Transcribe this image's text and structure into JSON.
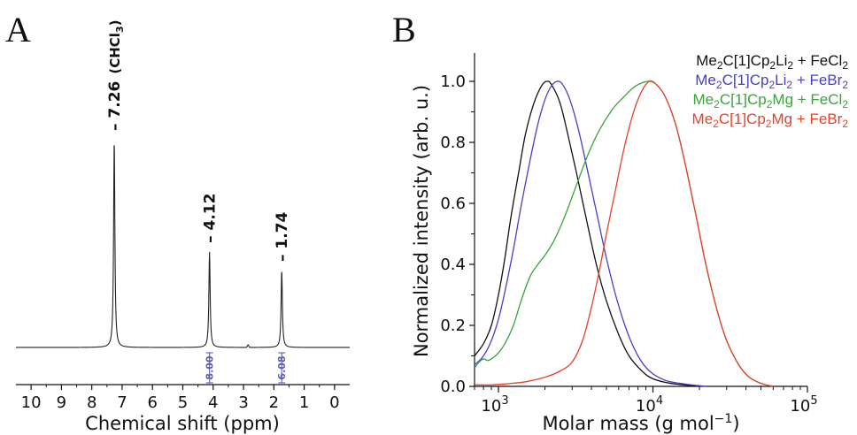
{
  "colors": {
    "axis": "#111111",
    "nmr_spectrum": "#222222",
    "integration": "#5b5bb0",
    "series_black": "#111111",
    "series_blue": "#4a3fc4",
    "series_green": "#3aa33a",
    "series_red": "#e8402a"
  },
  "chart_data": [
    {
      "panel": "A",
      "type": "line",
      "xlabel": "Chemical shift (ppm)",
      "ylabel": "",
      "xlim": [
        10.5,
        -0.5
      ],
      "x_reversed": true,
      "xticks": [
        "10",
        "9",
        "8",
        "7",
        "6",
        "5",
        "4",
        "3",
        "2",
        "1",
        "0"
      ],
      "tick_values": [
        10,
        9,
        8,
        7,
        6,
        5,
        4,
        3,
        2,
        1,
        0
      ],
      "grid": false,
      "peaks": [
        {
          "shift": 7.26,
          "relative_height": 1.0,
          "label": "7.26",
          "annotation": "(CHCl",
          "annotation_sub": "3",
          "annotation_end": ")"
        },
        {
          "shift": 4.12,
          "relative_height": 0.46,
          "label": "4.12"
        },
        {
          "shift": 1.74,
          "relative_height": 0.37,
          "label": "1.74"
        }
      ],
      "integrals": [
        {
          "shift": 4.12,
          "value": "8.00"
        },
        {
          "shift": 1.74,
          "value": "6.08"
        }
      ]
    },
    {
      "panel": "B",
      "type": "line",
      "xlabel_main": "Molar mass (g mol",
      "xlabel_sup": "−1",
      "xlabel_end": ")",
      "ylabel": "Normalized intensity (arb. u.)",
      "x_scale": "log",
      "xlim": [
        700,
        100000
      ],
      "ylim": [
        0,
        1.08
      ],
      "xticks": [
        {
          "value": 1000,
          "base": "10",
          "exp": "3"
        },
        {
          "value": 10000,
          "base": "10",
          "exp": "4"
        },
        {
          "value": 100000,
          "base": "10",
          "exp": "5"
        }
      ],
      "yticks": [
        "0.0",
        "0.2",
        "0.4",
        "0.6",
        "0.8",
        "1.0"
      ],
      "ytick_values": [
        0,
        0.2,
        0.4,
        0.6,
        0.8,
        1.0
      ],
      "grid": false,
      "legend_position": "top-right",
      "series": [
        {
          "name": "Me2C[1]Cp2Li2 + FeCl2",
          "color_key": "series_black",
          "legend_parts": [
            [
              "Me",
              ""
            ],
            [
              "2",
              "sub"
            ],
            [
              "C[1]Cp",
              ""
            ],
            [
              "2",
              "sub"
            ],
            [
              "Li",
              ""
            ],
            [
              "2",
              "sub"
            ],
            [
              " + FeCl",
              ""
            ],
            [
              "2",
              "sub"
            ]
          ],
          "points": [
            [
              700,
              0.1
            ],
            [
              800,
              0.14
            ],
            [
              900,
              0.2
            ],
            [
              1000,
              0.3
            ],
            [
              1100,
              0.42
            ],
            [
              1200,
              0.55
            ],
            [
              1350,
              0.7
            ],
            [
              1500,
              0.83
            ],
            [
              1700,
              0.93
            ],
            [
              1900,
              0.985
            ],
            [
              2050,
              1.0
            ],
            [
              2200,
              0.99
            ],
            [
              2500,
              0.93
            ],
            [
              2800,
              0.83
            ],
            [
              3200,
              0.7
            ],
            [
              3700,
              0.55
            ],
            [
              4300,
              0.4
            ],
            [
              5000,
              0.28
            ],
            [
              6000,
              0.17
            ],
            [
              7000,
              0.1
            ],
            [
              8500,
              0.05
            ],
            [
              10000,
              0.025
            ],
            [
              13000,
              0.01
            ],
            [
              20000,
              0.0
            ]
          ]
        },
        {
          "name": "Me2C[1]Cp2Li2 + FeBr2",
          "color_key": "series_blue",
          "legend_parts": [
            [
              "Me",
              ""
            ],
            [
              "2",
              "sub"
            ],
            [
              "C[1]Cp",
              ""
            ],
            [
              "2",
              "sub"
            ],
            [
              "Li",
              ""
            ],
            [
              "2",
              "sub"
            ],
            [
              " + FeBr",
              ""
            ],
            [
              "2",
              "sub"
            ]
          ],
          "points": [
            [
              700,
              0.07
            ],
            [
              800,
              0.1
            ],
            [
              900,
              0.15
            ],
            [
              1000,
              0.22
            ],
            [
              1100,
              0.31
            ],
            [
              1250,
              0.45
            ],
            [
              1400,
              0.59
            ],
            [
              1600,
              0.74
            ],
            [
              1800,
              0.86
            ],
            [
              2000,
              0.94
            ],
            [
              2200,
              0.985
            ],
            [
              2400,
              1.0
            ],
            [
              2600,
              0.99
            ],
            [
              2900,
              0.94
            ],
            [
              3300,
              0.84
            ],
            [
              3800,
              0.7
            ],
            [
              4400,
              0.55
            ],
            [
              5000,
              0.42
            ],
            [
              5800,
              0.29
            ],
            [
              6800,
              0.18
            ],
            [
              8000,
              0.1
            ],
            [
              9500,
              0.05
            ],
            [
              12000,
              0.02
            ],
            [
              16000,
              0.008
            ],
            [
              22000,
              0.0
            ]
          ]
        },
        {
          "name": "Me2C[1]Cp2Mg + FeCl2",
          "color_key": "series_green",
          "legend_parts": [
            [
              "Me",
              ""
            ],
            [
              "2",
              "sub"
            ],
            [
              "C[1]Cp",
              ""
            ],
            [
              "2",
              "sub"
            ],
            [
              "Mg + FeCl",
              ""
            ],
            [
              "2",
              "sub"
            ]
          ],
          "points": [
            [
              700,
              0.06
            ],
            [
              750,
              0.08
            ],
            [
              800,
              0.09
            ],
            [
              850,
              0.085
            ],
            [
              900,
              0.09
            ],
            [
              1000,
              0.11
            ],
            [
              1100,
              0.14
            ],
            [
              1250,
              0.2
            ],
            [
              1400,
              0.28
            ],
            [
              1600,
              0.36
            ],
            [
              1800,
              0.4
            ],
            [
              2000,
              0.43
            ],
            [
              2300,
              0.48
            ],
            [
              2700,
              0.56
            ],
            [
              3200,
              0.66
            ],
            [
              3800,
              0.76
            ],
            [
              4500,
              0.84
            ],
            [
              5500,
              0.91
            ],
            [
              6500,
              0.95
            ],
            [
              7500,
              0.98
            ],
            [
              8500,
              0.995
            ],
            [
              9500,
              1.0
            ],
            [
              10500,
              0.99
            ],
            [
              12000,
              0.95
            ],
            [
              14000,
              0.86
            ],
            [
              16000,
              0.74
            ],
            [
              19000,
              0.56
            ],
            [
              22000,
              0.4
            ],
            [
              26000,
              0.25
            ],
            [
              30000,
              0.15
            ],
            [
              36000,
              0.07
            ],
            [
              42000,
              0.03
            ],
            [
              50000,
              0.01
            ],
            [
              60000,
              0.0
            ]
          ]
        },
        {
          "name": "Me2C[1]Cp2Mg + FeBr2",
          "color_key": "series_red",
          "legend_parts": [
            [
              "Me",
              ""
            ],
            [
              "2",
              "sub"
            ],
            [
              "C[1]Cp",
              ""
            ],
            [
              "2",
              "sub"
            ],
            [
              "Mg + FeBr",
              ""
            ],
            [
              "2",
              "sub"
            ]
          ],
          "points": [
            [
              700,
              0.005
            ],
            [
              900,
              0.005
            ],
            [
              1100,
              0.008
            ],
            [
              1500,
              0.015
            ],
            [
              2000,
              0.03
            ],
            [
              2500,
              0.05
            ],
            [
              3000,
              0.08
            ],
            [
              3500,
              0.15
            ],
            [
              4000,
              0.26
            ],
            [
              4500,
              0.38
            ],
            [
              5000,
              0.5
            ],
            [
              5700,
              0.64
            ],
            [
              6500,
              0.78
            ],
            [
              7500,
              0.9
            ],
            [
              8500,
              0.97
            ],
            [
              9500,
              1.0
            ],
            [
              10500,
              0.99
            ],
            [
              12000,
              0.95
            ],
            [
              14000,
              0.86
            ],
            [
              16000,
              0.74
            ],
            [
              19000,
              0.56
            ],
            [
              22000,
              0.4
            ],
            [
              26000,
              0.25
            ],
            [
              30000,
              0.15
            ],
            [
              36000,
              0.07
            ],
            [
              42000,
              0.03
            ],
            [
              50000,
              0.01
            ],
            [
              60000,
              0.0
            ]
          ]
        }
      ]
    }
  ]
}
